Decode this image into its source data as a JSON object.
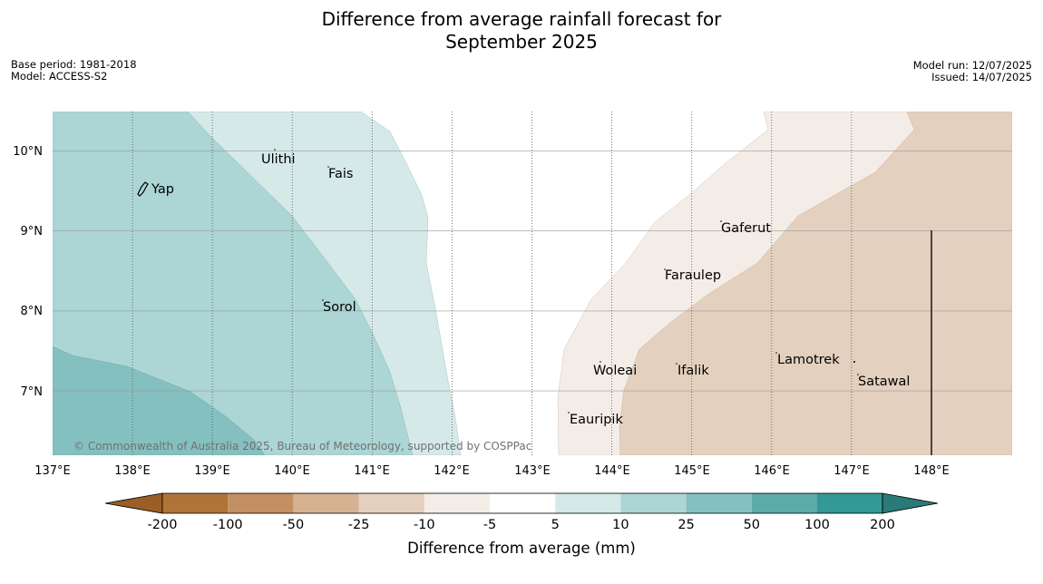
{
  "title_line1": "Difference from average rainfall forecast for",
  "title_line2": "September 2025",
  "meta": {
    "base_period": "Base period: 1981-2018",
    "model": "Model: ACCESS-S2",
    "model_run": "Model run: 12/07/2025",
    "issued": "Issued: 14/07/2025"
  },
  "axes": {
    "lon_labels": [
      "137°E",
      "138°E",
      "139°E",
      "140°E",
      "141°E",
      "142°E",
      "143°E",
      "144°E",
      "145°E",
      "146°E",
      "147°E",
      "148°E"
    ],
    "lat_labels": [
      "10°N",
      "9°N",
      "8°N",
      "7°N"
    ]
  },
  "places": [
    "Ulithi",
    "Fais",
    "Yap",
    "Gaferut",
    "Faraulep",
    "Sorol",
    "Lamotrek",
    "Woleai",
    "Ifalik",
    "Satawal",
    "Eauripik"
  ],
  "copyright": "© Commonwealth of Australia 2025, Bureau of Meteorology, supported by COSPPac",
  "colorbar": {
    "title": "Difference from average (mm)",
    "tick_labels": [
      "-200",
      "-100",
      "-50",
      "-25",
      "-10",
      "-5",
      "5",
      "10",
      "25",
      "50",
      "100",
      "200"
    ],
    "colors": [
      "#9b5e26",
      "#b07438",
      "#c39063",
      "#d6b192",
      "#e4d0be",
      "#f4ede7",
      "#ffffff",
      "#d5e9e8",
      "#acd5d5",
      "#84c0bf",
      "#5aabaa",
      "#339896",
      "#2a7a79"
    ]
  }
}
